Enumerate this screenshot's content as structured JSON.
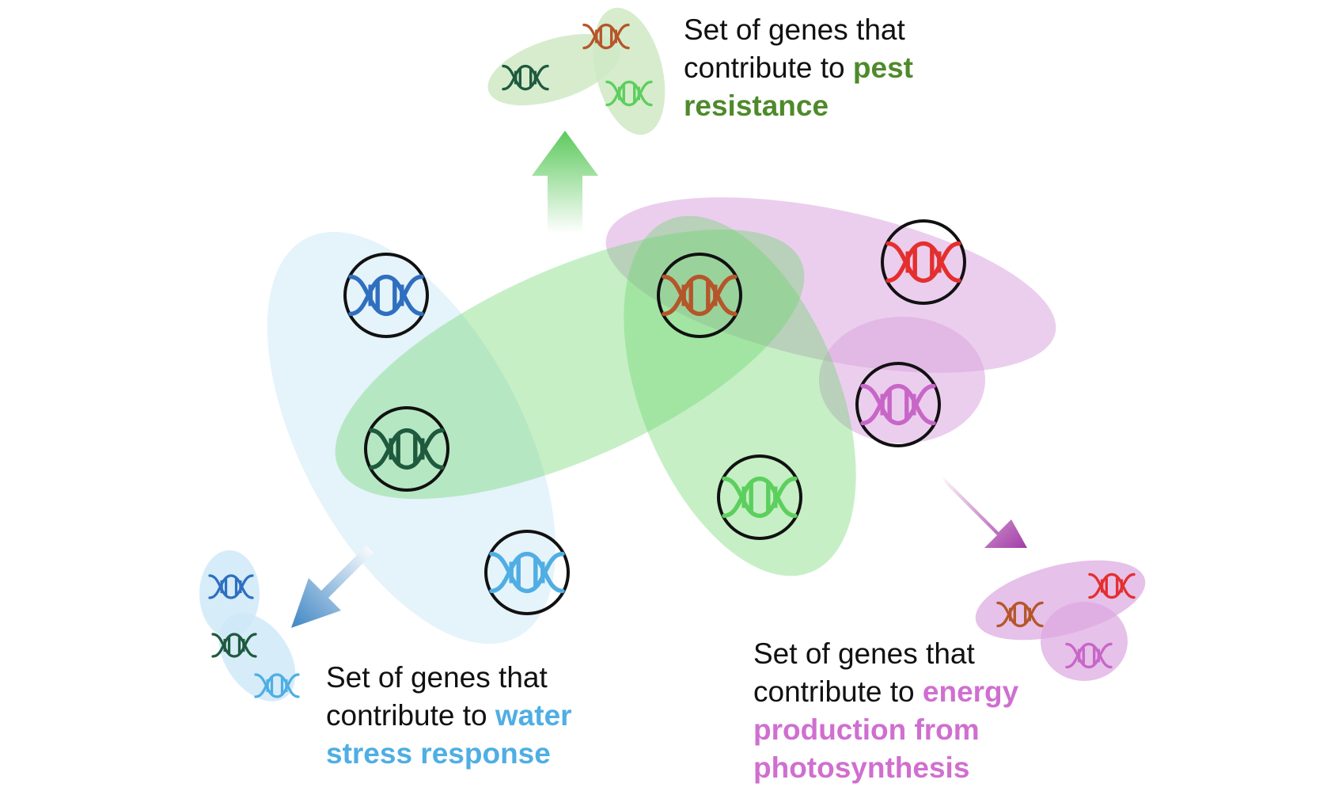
{
  "colors": {
    "pest": "#4e8a2b",
    "water": "#4faee3",
    "energy": "#d06fd0",
    "pest_blob": "#7ed77e",
    "water_blob": "#cfe9f8",
    "energy_blob": "#dba6df"
  },
  "icon": "dna-icon",
  "genes": [
    {
      "name": "gene-blue",
      "color": "#2f6fbf"
    },
    {
      "name": "gene-darkgreen",
      "color": "#1f5a3e"
    },
    {
      "name": "gene-lightblue",
      "color": "#4faee3"
    },
    {
      "name": "gene-orange",
      "color": "#b5562a"
    },
    {
      "name": "gene-green",
      "color": "#5ccf5c"
    },
    {
      "name": "gene-red",
      "color": "#e42f2f"
    },
    {
      "name": "gene-magenta",
      "color": "#c866c8"
    }
  ],
  "captions": {
    "pest": {
      "line1": "Set of genes that",
      "line2_prefix": "contribute to ",
      "line2_highlight": "pest",
      "line3_highlight": "resistance"
    },
    "water": {
      "line1": "Set of genes that",
      "line2_prefix": "contribute to ",
      "line2_highlight": "water",
      "line3_highlight": "stress response"
    },
    "energy": {
      "line1": "Set of genes that",
      "line2_prefix": "contribute to ",
      "line2_highlight": "energy",
      "line3_highlight": "production from",
      "line4_highlight": "photosynthesis"
    }
  }
}
